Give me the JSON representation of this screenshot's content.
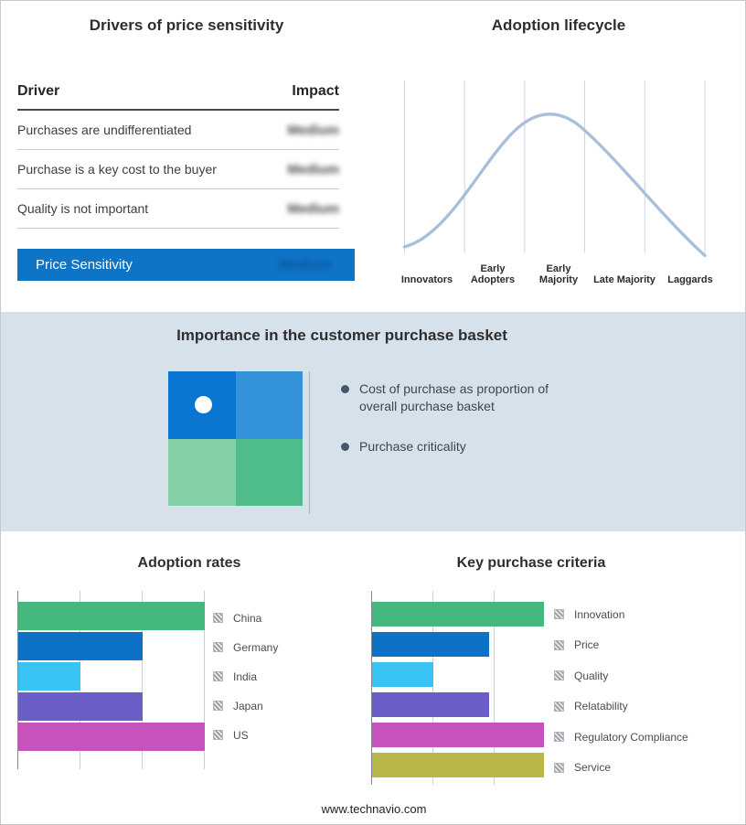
{
  "page": {
    "footer_url": "www.technavio.com"
  },
  "drivers_panel": {
    "title": "Drivers of price sensitivity",
    "header": {
      "driver": "Driver",
      "impact": "Impact"
    },
    "rows": [
      {
        "driver": "Purchases are undifferentiated",
        "impact": "Medium"
      },
      {
        "driver": "Purchase is a key cost to the buyer",
        "impact": "Medium"
      },
      {
        "driver": "Quality is not important",
        "impact": "Medium"
      }
    ],
    "summary_row": {
      "label": "Price Sensitivity",
      "impact": "Medium"
    },
    "colors": {
      "summary_bg": "#0e74c6",
      "summary_impact_text": "#0a549b",
      "impact_text": "#4a4a4a"
    },
    "note": "impact values appear intentionally blurred in source image"
  },
  "lifecycle_panel": {
    "title": "Adoption lifecycle",
    "stages": [
      "Innovators",
      "Early Adopters",
      "Early Majority",
      "Late Majority",
      "Laggards"
    ],
    "curve_color": "#a9bed9"
  },
  "purchase_basket_panel": {
    "title": "Importance in the customer purchase basket",
    "bullets": [
      "Cost of purchase as proportion of overall purchase basket",
      "Purchase criticality"
    ],
    "band_bg": "#d7e1ea",
    "quadrant_colors": {
      "top_left": "#0a76d2",
      "top_right": "#3392da",
      "bottom_left": "#84cfa6",
      "bottom_right": "#4ebd8b"
    }
  },
  "chart_data": [
    {
      "type": "line",
      "title": "Adoption lifecycle",
      "x_categories": [
        "Innovators",
        "Early Adopters",
        "Early Majority",
        "Late Majority",
        "Laggards"
      ],
      "description": "Conceptual bell-shaped adoption curve peaking over the Early Majority stage; no numeric axes shown",
      "grid": "vertical gridlines only",
      "legend_position": "none"
    },
    {
      "type": "bar",
      "orientation": "horizontal",
      "title": "Adoption rates",
      "categories": [
        "China",
        "Germany",
        "India",
        "Japan",
        "US"
      ],
      "values": [
        3,
        2,
        1,
        2,
        3
      ],
      "xlim": [
        0,
        3
      ],
      "gridlines": [
        0,
        1,
        2,
        3
      ],
      "colors": [
        "#45b97d",
        "#0d72c5",
        "#38c3f2",
        "#6a5ec6",
        "#c553bb"
      ],
      "xlabel": "",
      "ylabel": "",
      "legend_position": "right",
      "note": "axis unlabeled; values estimated in gridline units from bar lengths"
    },
    {
      "type": "bar",
      "orientation": "horizontal",
      "title": "Key purchase criteria",
      "categories": [
        "Innovation",
        "Price",
        "Quality",
        "Relatability",
        "Regulatory Compliance",
        "Service"
      ],
      "values": [
        2.8,
        1.9,
        1,
        1.9,
        2.8,
        2.8
      ],
      "xlim": [
        0,
        2.8
      ],
      "gridlines": [
        0,
        1,
        2
      ],
      "colors": [
        "#45b97d",
        "#0d72c5",
        "#38c3f2",
        "#6a5ec6",
        "#c553bb",
        "#b9b74a"
      ],
      "xlabel": "",
      "ylabel": "",
      "legend_position": "right",
      "note": "axis unlabeled; values estimated in gridline units from bar lengths"
    }
  ]
}
